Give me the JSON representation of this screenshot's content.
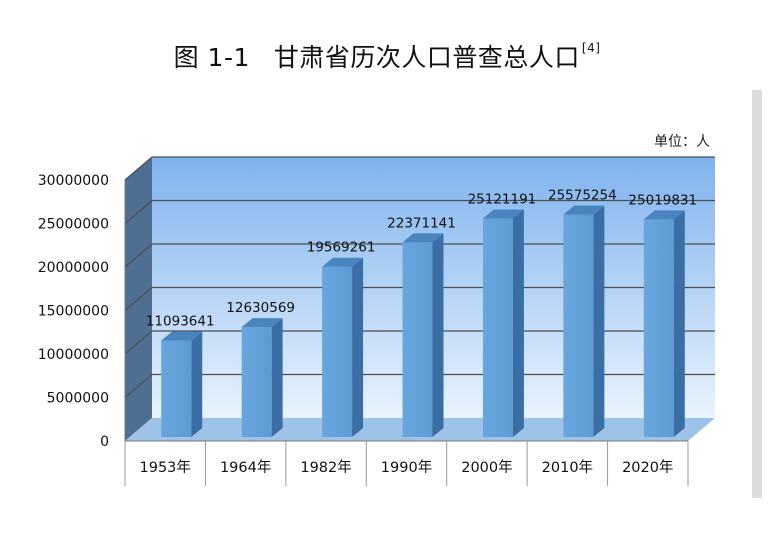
{
  "title": {
    "figure_no": "图 1-1",
    "text": "甘肃省历次人口普查总人口",
    "ref": "[4]"
  },
  "chart_data": {
    "type": "bar",
    "unit_label": "单位：人",
    "categories": [
      "1953年",
      "1964年",
      "1982年",
      "1990年",
      "2000年",
      "2010年",
      "2020年"
    ],
    "values": [
      11093641,
      12630569,
      19569261,
      22371141,
      25121191,
      25575254,
      25019831
    ],
    "data_labels": [
      "11093641",
      "12630569",
      "19569261",
      "22371141",
      "25121191",
      "25575254",
      "25019831"
    ],
    "yticks": [
      0,
      5000000,
      10000000,
      15000000,
      20000000,
      25000000,
      30000000
    ],
    "ytick_labels": [
      "0",
      "5000000",
      "10000000",
      "15000000",
      "20000000",
      "25000000",
      "30000000"
    ],
    "ylim": [
      0,
      30000000
    ],
    "grid": true,
    "legend": "none",
    "colors": {
      "bar_front": "#5b9bd5",
      "bar_side": "#3a6ea5",
      "bar_top": "#4a84bf",
      "wall_top": "#7fb3ee",
      "wall_bottom": "#e9f3fd",
      "floor": "#9ec3e8",
      "side_wall": "#4f6f92",
      "gridline": "#4d4d4d"
    }
  }
}
